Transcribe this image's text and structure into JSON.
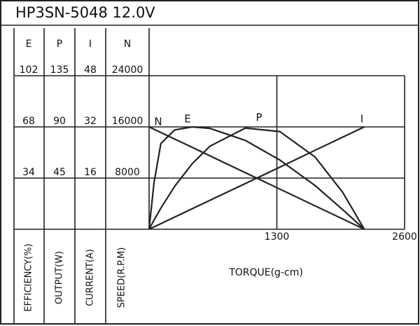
{
  "chart_data": {
    "type": "line",
    "title": "HP3SN-5048   12.0V",
    "x_label": "TORQUE(g-cm)",
    "xlim": [
      0,
      2600
    ],
    "xticks": [
      1300,
      2600
    ],
    "x": [
      0,
      50,
      120,
      260,
      440,
      620,
      980,
      1330,
      1690,
      1970,
      2190
    ],
    "grid": true,
    "color": "#222222",
    "series": [
      {
        "name": "E",
        "axis_label": "EFFICIENCY(%)",
        "ylim": [
          0,
          102
        ],
        "yticks": [
          34,
          68,
          102
        ],
        "values": [
          0,
          31,
          57,
          66,
          68,
          67,
          59,
          46,
          29,
          13,
          0
        ]
      },
      {
        "name": "P",
        "axis_label": "OUTPUT(W)",
        "ylim": [
          0,
          135
        ],
        "yticks": [
          45,
          90,
          135
        ],
        "values": [
          0,
          8.0,
          18.6,
          37.7,
          57.8,
          73.1,
          89.0,
          85.9,
          63.4,
          32.5,
          0
        ]
      },
      {
        "name": "I",
        "axis_label": "CURRENT(A)",
        "ylim": [
          0,
          48
        ],
        "yticks": [
          16,
          32,
          48
        ],
        "values": [
          0,
          0.73,
          1.75,
          3.8,
          6.43,
          9.06,
          14.3,
          19.4,
          24.7,
          28.8,
          32
        ]
      },
      {
        "name": "N",
        "axis_label": "SPEED(R.P.M)",
        "ylim": [
          0,
          24000
        ],
        "yticks": [
          8000,
          16000,
          24000
        ],
        "values": [
          16000,
          15630,
          15120,
          14100,
          12790,
          11470,
          8840,
          6280,
          3650,
          1610,
          0
        ]
      }
    ]
  }
}
